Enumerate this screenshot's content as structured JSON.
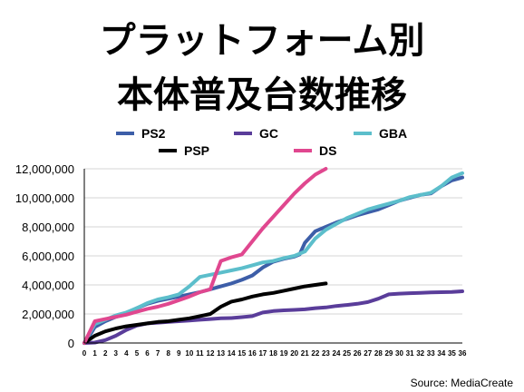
{
  "chart_data": {
    "type": "line",
    "title_lines": [
      "プラットフォーム別",
      "本体普及台数推移"
    ],
    "source": "Source: MediaCreate",
    "xlabel": "",
    "ylabel": "",
    "ylim": [
      0,
      12000000
    ],
    "xlim": [
      0,
      36
    ],
    "y_tick_labels": [
      "12,000,000",
      "10,000,000",
      "8,000,000",
      "6,000,000",
      "4,000,000",
      "2,000,000",
      "0"
    ],
    "x_tick_labels": [
      "0",
      "1",
      "2",
      "3",
      "4",
      "5",
      "6",
      "7",
      "8",
      "9",
      "10",
      "11",
      "12",
      "13",
      "14",
      "15",
      "16",
      "17",
      "18",
      "19",
      "20",
      "21",
      "22",
      "23",
      "24",
      "25",
      "26",
      "27",
      "28",
      "29",
      "30",
      "31",
      "32",
      "33",
      "34",
      "35",
      "36"
    ],
    "legend_position": "top",
    "grid": "horizontal",
    "series": [
      {
        "name": "PS2",
        "color": "#3d5ea8",
        "x": [
          0,
          0.5,
          1,
          2,
          3,
          4,
          5,
          6,
          7,
          8,
          9,
          10,
          11,
          12,
          13,
          14,
          15,
          16,
          17,
          18,
          19,
          20,
          20.5,
          21,
          22,
          23,
          24,
          25,
          26,
          27,
          28,
          29,
          30,
          31,
          32,
          33,
          34,
          35,
          36
        ],
        "values": [
          0,
          500000,
          1100000,
          1500000,
          1800000,
          2050000,
          2400000,
          2700000,
          2900000,
          3050000,
          3200000,
          3350000,
          3500000,
          3700000,
          3900000,
          4100000,
          4350000,
          4650000,
          5200000,
          5600000,
          5800000,
          5950000,
          6100000,
          6900000,
          7700000,
          8000000,
          8300000,
          8550000,
          8800000,
          9000000,
          9200000,
          9500000,
          9800000,
          10000000,
          10200000,
          10300000,
          10800000,
          11200000,
          11400000
        ]
      },
      {
        "name": "GC",
        "color": "#5a3d9a",
        "x": [
          0,
          1,
          2,
          3,
          4,
          5,
          6,
          7,
          8,
          9,
          10,
          11,
          12,
          13,
          14,
          15,
          16,
          17,
          18,
          19,
          20,
          21,
          22,
          23,
          24,
          25,
          26,
          27,
          28,
          29,
          30,
          31,
          32,
          33,
          34,
          35,
          36
        ],
        "values": [
          0,
          30000,
          200000,
          500000,
          900000,
          1200000,
          1350000,
          1400000,
          1450000,
          1500000,
          1550000,
          1600000,
          1650000,
          1700000,
          1720000,
          1780000,
          1850000,
          2100000,
          2200000,
          2250000,
          2280000,
          2320000,
          2400000,
          2450000,
          2550000,
          2620000,
          2700000,
          2820000,
          3050000,
          3350000,
          3400000,
          3430000,
          3450000,
          3480000,
          3500000,
          3520000,
          3560000
        ]
      },
      {
        "name": "GBA",
        "color": "#5cbecb",
        "x": [
          0,
          1,
          2,
          3,
          4,
          5,
          6,
          7,
          8,
          9,
          10,
          11,
          12,
          13,
          14,
          15,
          16,
          17,
          18,
          19,
          20,
          21,
          22,
          23,
          24,
          25,
          26,
          27,
          28,
          29,
          30,
          31,
          32,
          33,
          34,
          35,
          36
        ],
        "values": [
          0,
          1300000,
          1600000,
          1900000,
          2100000,
          2400000,
          2750000,
          3000000,
          3150000,
          3350000,
          3900000,
          4550000,
          4700000,
          4850000,
          5000000,
          5150000,
          5350000,
          5550000,
          5650000,
          5850000,
          6000000,
          6300000,
          7200000,
          7800000,
          8200000,
          8600000,
          8900000,
          9200000,
          9400000,
          9600000,
          9800000,
          10050000,
          10200000,
          10350000,
          10800000,
          11400000,
          11700000
        ]
      },
      {
        "name": "PSP",
        "color": "#000000",
        "x": [
          0,
          1,
          2,
          3,
          4,
          5,
          6,
          7,
          8,
          9,
          10,
          11,
          12,
          13,
          14,
          15,
          16,
          17,
          18,
          19,
          20,
          21,
          22,
          23
        ],
        "values": [
          0,
          500000,
          800000,
          1000000,
          1150000,
          1250000,
          1350000,
          1450000,
          1500000,
          1600000,
          1700000,
          1850000,
          2000000,
          2500000,
          2850000,
          3000000,
          3200000,
          3350000,
          3450000,
          3600000,
          3750000,
          3900000,
          4000000,
          4100000
        ]
      },
      {
        "name": "DS",
        "color": "#e0478f",
        "x": [
          0,
          1,
          2,
          3,
          4,
          5,
          6,
          7,
          8,
          9,
          10,
          11,
          12,
          12.5,
          13,
          14,
          15,
          16,
          17,
          18,
          19,
          20,
          21,
          22,
          23
        ],
        "values": [
          0,
          1500000,
          1650000,
          1800000,
          1950000,
          2150000,
          2350000,
          2500000,
          2700000,
          2950000,
          3200000,
          3500000,
          3700000,
          4700000,
          5650000,
          5900000,
          6100000,
          7000000,
          7900000,
          8700000,
          9500000,
          10300000,
          11000000,
          11600000,
          12000000
        ]
      }
    ]
  }
}
